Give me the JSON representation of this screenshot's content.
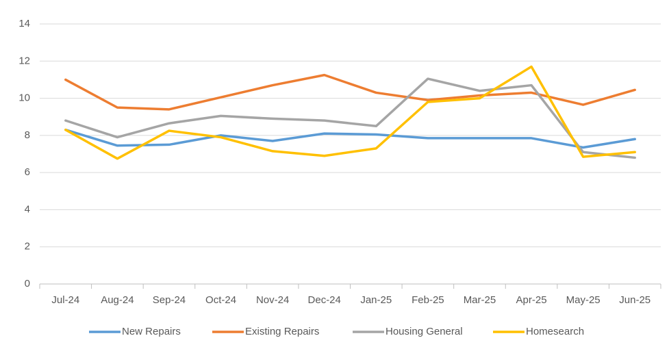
{
  "chart_data": {
    "type": "line",
    "categories": [
      "Jul-24",
      "Aug-24",
      "Sep-24",
      "Oct-24",
      "Nov-24",
      "Dec-24",
      "Jan-25",
      "Feb-25",
      "Mar-25",
      "Apr-25",
      "May-25",
      "Jun-25"
    ],
    "series": [
      {
        "name": "New Repairs",
        "color": "#5b9bd5",
        "values": [
          8.3,
          7.45,
          7.5,
          8.0,
          7.7,
          8.1,
          8.05,
          7.85,
          7.85,
          7.85,
          7.35,
          7.8
        ]
      },
      {
        "name": "Existing Repairs",
        "color": "#ed7d31",
        "values": [
          11.0,
          9.5,
          9.4,
          10.05,
          10.7,
          11.25,
          10.3,
          9.9,
          10.15,
          10.3,
          9.65,
          10.45
        ]
      },
      {
        "name": "Housing General",
        "color": "#a5a5a5",
        "values": [
          8.8,
          7.9,
          8.65,
          9.05,
          8.9,
          8.8,
          8.5,
          11.05,
          10.4,
          10.7,
          7.1,
          6.8
        ]
      },
      {
        "name": "Homesearch",
        "color": "#ffc000",
        "values": [
          8.3,
          6.75,
          8.25,
          7.9,
          7.15,
          6.9,
          7.3,
          9.8,
          10.0,
          11.7,
          6.85,
          7.1
        ]
      }
    ],
    "ylim": [
      0,
      14
    ],
    "yticks": [
      0,
      2,
      4,
      6,
      8,
      10,
      12,
      14
    ],
    "grid": true,
    "legend": "bottom"
  }
}
